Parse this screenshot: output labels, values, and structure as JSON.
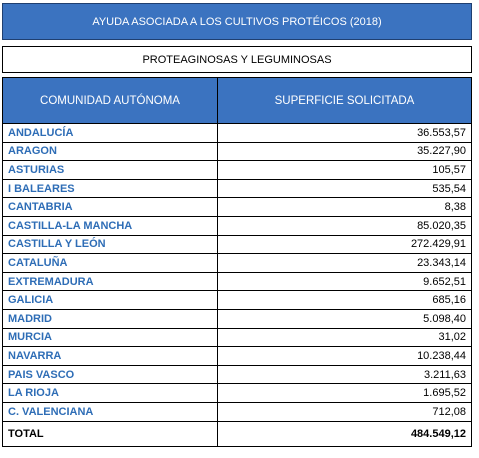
{
  "title": "AYUDA ASOCIADA A LOS CULTIVOS PROTÉICOS (2018)",
  "subtitle": "PROTEAGINOSAS Y LEGUMINOSAS",
  "headers": {
    "region": "COMUNIDAD AUTÓNOMA",
    "surface": "SUPERFICIE SOLICITADA"
  },
  "rows": [
    {
      "name": "ANDALUCÍA",
      "value": "36.553,57"
    },
    {
      "name": "ARAGON",
      "value": "35.227,90"
    },
    {
      "name": "ASTURIAS",
      "value": "105,57"
    },
    {
      "name": "I BALEARES",
      "value": "535,54"
    },
    {
      "name": "CANTABRIA",
      "value": "8,38"
    },
    {
      "name": "CASTILLA-LA MANCHA",
      "value": "85.020,35"
    },
    {
      "name": "CASTILLA Y LEÓN",
      "value": "272.429,91"
    },
    {
      "name": "CATALUÑA",
      "value": "23.343,14"
    },
    {
      "name": "EXTREMADURA",
      "value": "9.652,51"
    },
    {
      "name": "GALICIA",
      "value": "685,16"
    },
    {
      "name": "MADRID",
      "value": "5.098,40"
    },
    {
      "name": "MURCIA",
      "value": "31,02"
    },
    {
      "name": "NAVARRA",
      "value": "10.238,44"
    },
    {
      "name": "PAIS VASCO",
      "value": "3.211,63"
    },
    {
      "name": "LA RIOJA",
      "value": "1.695,52"
    },
    {
      "name": "C. VALENCIANA",
      "value": "712,08"
    }
  ],
  "total": {
    "label": "TOTAL",
    "value": "484.549,12"
  },
  "colors": {
    "header_blue": "#3b73c0",
    "region_text": "#2e6db6"
  }
}
